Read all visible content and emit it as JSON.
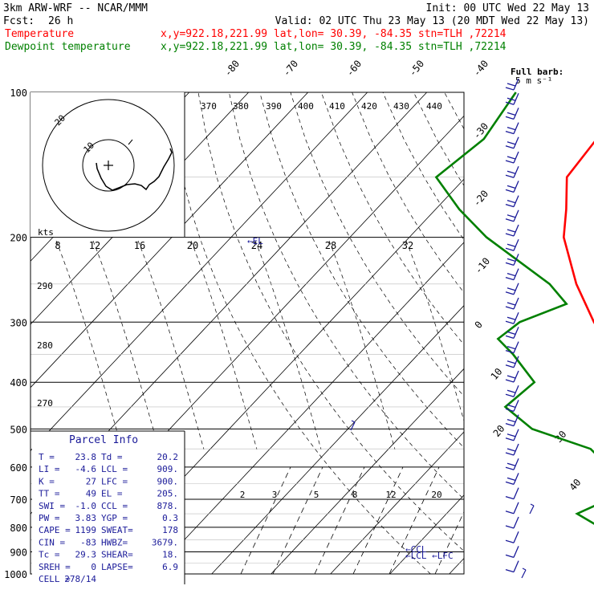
{
  "header": {
    "title": "3km ARW-WRF -- NCAR/MMM",
    "init": "Init: 00 UTC Wed 22 May 13",
    "fcst_label": "Fcst:",
    "fcst_hours": "26 h",
    "valid": "Valid: 02 UTC Thu 23 May 13 (20 MDT Wed 22 May 13)"
  },
  "legend": [
    {
      "name": "Temperature",
      "info": "x,y=922.18,221.99   lat,lon= 30.39, -84.35   stn=TLH ,72214",
      "color": "#ff0000"
    },
    {
      "name": "Dewpoint temperature",
      "info": "x,y=922.18,221.99   lat,lon= 30.39, -84.35   stn=TLH ,72214",
      "color": "#008000"
    }
  ],
  "barb_note": [
    "Full barb:",
    "5 m s⁻¹"
  ],
  "hodograph": {
    "ring_labels": [
      "10",
      "20"
    ],
    "units": "kts"
  },
  "parcel_info": {
    "title": "Parcel Info",
    "rows": [
      [
        "T  =",
        "23.8",
        "Td =",
        "20.2"
      ],
      [
        "LI =",
        "-4.6",
        "LCL =",
        "909."
      ],
      [
        "K  =",
        "27",
        "LFC =",
        "900."
      ],
      [
        "TT =",
        "49",
        "EL =",
        "205."
      ],
      [
        "SWI =",
        "-1.0",
        "CCL =",
        "878."
      ],
      [
        "PW =",
        "3.83",
        "YGP =",
        "0.3"
      ],
      [
        "CAPE =",
        "1199",
        "SWEAT=",
        "178"
      ],
      [
        "CIN =",
        "-83",
        "HWBZ=",
        "3679."
      ],
      [
        "Tc =",
        "29.3",
        "SHEAR=",
        "18."
      ],
      [
        "SREH =",
        "0",
        "LAPSE=",
        "6.9"
      ],
      [
        "CELL =",
        "278/14",
        "",
        ""
      ]
    ]
  },
  "level_markers": [
    {
      "label": "←CCL",
      "p": 878
    },
    {
      "label": "←LCL ←LFC",
      "p": 900
    },
    {
      "label": "←EL",
      "p": 205
    }
  ],
  "chart_data": {
    "type": "line",
    "title": "",
    "xlabel": "",
    "ylabel": "",
    "y_scale": "log-pressure",
    "pressure_levels": [
      100,
      200,
      300,
      400,
      500,
      600,
      700,
      800,
      900,
      1000
    ],
    "temperature_ticks": [
      -80,
      -70,
      -60,
      -50,
      -40,
      -30,
      -20,
      -10,
      0,
      10,
      20,
      30,
      40
    ],
    "dry_adiabat_labels": [
      270,
      280,
      290,
      370,
      380,
      390,
      400,
      410,
      420,
      430,
      440
    ],
    "mixing_ratio_labels": [
      2,
      3,
      5,
      8,
      12,
      20
    ],
    "hodo_speed_labels": [
      8,
      12,
      16,
      20,
      24,
      28,
      32
    ],
    "series": [
      {
        "name": "Temperature",
        "color": "#ff0000",
        "points": [
          [
            1000,
            25.5
          ],
          [
            975,
            23.8
          ],
          [
            950,
            21.0
          ],
          [
            925,
            19.5
          ],
          [
            900,
            18.0
          ],
          [
            850,
            16.0
          ],
          [
            800,
            13.0
          ],
          [
            750,
            10.5
          ],
          [
            700,
            8.0
          ],
          [
            650,
            4.5
          ],
          [
            600,
            0.5
          ],
          [
            550,
            -4.0
          ],
          [
            500,
            -8.5
          ],
          [
            450,
            -14.0
          ],
          [
            400,
            -20.0
          ],
          [
            350,
            -27.0
          ],
          [
            300,
            -35.5
          ],
          [
            250,
            -44.5
          ],
          [
            200,
            -54.0
          ],
          [
            175,
            -58.0
          ],
          [
            150,
            -63.0
          ],
          [
            125,
            -64.0
          ],
          [
            100,
            -66.0
          ]
        ]
      },
      {
        "name": "Dewpoint temperature",
        "color": "#008000",
        "points": [
          [
            1000,
            19.5
          ],
          [
            975,
            20.2
          ],
          [
            950,
            19.0
          ],
          [
            925,
            17.0
          ],
          [
            900,
            14.0
          ],
          [
            850,
            5.0
          ],
          [
            800,
            -2.0
          ],
          [
            750,
            -8.0
          ],
          [
            700,
            -5.0
          ],
          [
            650,
            -5.5
          ],
          [
            600,
            -10.0
          ],
          [
            550,
            -16.0
          ],
          [
            500,
            -29.0
          ],
          [
            450,
            -37.0
          ],
          [
            400,
            -36.0
          ],
          [
            350,
            -44.0
          ],
          [
            325,
            -49.0
          ],
          [
            300,
            -48.0
          ],
          [
            275,
            -43.0
          ],
          [
            250,
            -49.0
          ],
          [
            200,
            -67.0
          ],
          [
            175,
            -76.0
          ],
          [
            150,
            -85.0
          ],
          [
            125,
            -83.0
          ],
          [
            100,
            -85.0
          ]
        ]
      }
    ]
  }
}
